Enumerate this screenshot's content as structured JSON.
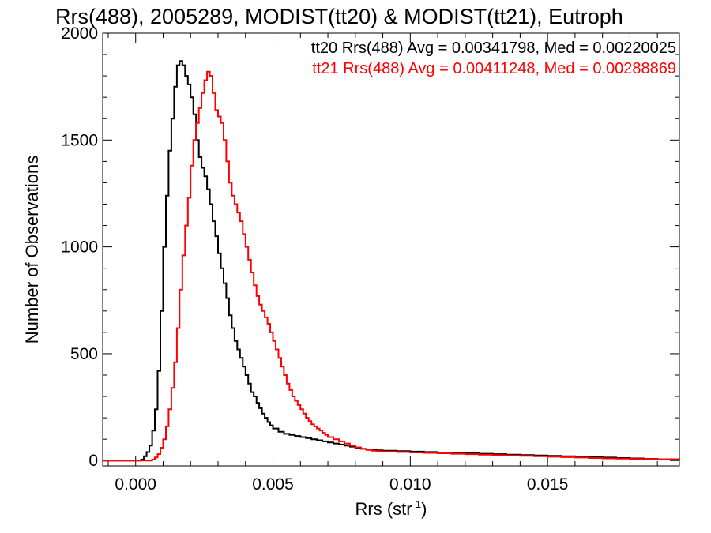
{
  "chart_data": {
    "type": "line",
    "title": "Rrs(488), 2005289, MODIST(tt20) & MODIST(tt21), Eutroph",
    "xlabel_main": "Rrs (str",
    "xlabel_exp": "-1",
    "xlabel_close": ")",
    "ylabel": "Number of Observations",
    "xlim": [
      -0.0012,
      0.0198
    ],
    "ylim": [
      -25,
      2000
    ],
    "x_ticks": [
      0.0,
      0.005,
      0.01,
      0.015
    ],
    "x_tick_labels": [
      "0.000",
      "0.005",
      "0.010",
      "0.015"
    ],
    "y_ticks": [
      0,
      500,
      1000,
      1500,
      2000
    ],
    "y_tick_labels": [
      "0",
      "500",
      "1000",
      "1500",
      "2000"
    ],
    "step_histogram": true,
    "annotations": [
      {
        "text": "tt20 Rrs(488) Avg = 0.00341798, Med = 0.00220025",
        "color": "#000000"
      },
      {
        "text": "tt21 Rrs(488) Avg = 0.00411248, Med = 0.00288869",
        "color": "#ff0000"
      }
    ],
    "series": [
      {
        "color": "#000000",
        "points": [
          [
            -0.0012,
            0
          ],
          [
            0.0,
            0
          ],
          [
            0.0002,
            5
          ],
          [
            0.0003,
            20
          ],
          [
            0.0004,
            40
          ],
          [
            0.0005,
            70
          ],
          [
            0.0006,
            140
          ],
          [
            0.0007,
            240
          ],
          [
            0.0008,
            420
          ],
          [
            0.0009,
            700
          ],
          [
            0.001,
            1000
          ],
          [
            0.0011,
            1240
          ],
          [
            0.0012,
            1450
          ],
          [
            0.0013,
            1600
          ],
          [
            0.0014,
            1750
          ],
          [
            0.0015,
            1850
          ],
          [
            0.0016,
            1870
          ],
          [
            0.0017,
            1850
          ],
          [
            0.0018,
            1800
          ],
          [
            0.0019,
            1760
          ],
          [
            0.002,
            1700
          ],
          [
            0.0021,
            1620
          ],
          [
            0.0022,
            1500
          ],
          [
            0.0023,
            1420
          ],
          [
            0.0024,
            1370
          ],
          [
            0.0025,
            1330
          ],
          [
            0.0026,
            1270
          ],
          [
            0.0027,
            1200
          ],
          [
            0.0028,
            1120
          ],
          [
            0.0029,
            1050
          ],
          [
            0.003,
            970
          ],
          [
            0.0031,
            900
          ],
          [
            0.0032,
            830
          ],
          [
            0.0033,
            760
          ],
          [
            0.0034,
            680
          ],
          [
            0.0035,
            620
          ],
          [
            0.0036,
            560
          ],
          [
            0.0037,
            520
          ],
          [
            0.0038,
            480
          ],
          [
            0.0039,
            440
          ],
          [
            0.004,
            400
          ],
          [
            0.0041,
            360
          ],
          [
            0.0042,
            320
          ],
          [
            0.0043,
            300
          ],
          [
            0.0044,
            270
          ],
          [
            0.0045,
            245
          ],
          [
            0.0046,
            220
          ],
          [
            0.0047,
            200
          ],
          [
            0.0048,
            180
          ],
          [
            0.0049,
            165
          ],
          [
            0.005,
            150
          ],
          [
            0.0052,
            135
          ],
          [
            0.0054,
            125
          ],
          [
            0.0056,
            120
          ],
          [
            0.0058,
            115
          ],
          [
            0.006,
            110
          ],
          [
            0.0062,
            105
          ],
          [
            0.0064,
            100
          ],
          [
            0.0066,
            95
          ],
          [
            0.0068,
            90
          ],
          [
            0.007,
            85
          ],
          [
            0.0072,
            80
          ],
          [
            0.0074,
            75
          ],
          [
            0.0076,
            70
          ],
          [
            0.0078,
            65
          ],
          [
            0.008,
            60
          ],
          [
            0.0082,
            55
          ],
          [
            0.0084,
            52
          ],
          [
            0.0086,
            50
          ],
          [
            0.0088,
            48
          ],
          [
            0.009,
            46
          ],
          [
            0.0095,
            44
          ],
          [
            0.01,
            42
          ],
          [
            0.0105,
            40
          ],
          [
            0.011,
            38
          ],
          [
            0.0115,
            36
          ],
          [
            0.012,
            34
          ],
          [
            0.0125,
            32
          ],
          [
            0.013,
            30
          ],
          [
            0.0135,
            28
          ],
          [
            0.014,
            26
          ],
          [
            0.0145,
            24
          ],
          [
            0.015,
            22
          ],
          [
            0.0155,
            20
          ],
          [
            0.016,
            18
          ],
          [
            0.0165,
            16
          ],
          [
            0.017,
            14
          ],
          [
            0.0175,
            12
          ],
          [
            0.018,
            10
          ],
          [
            0.0185,
            8
          ],
          [
            0.019,
            6
          ],
          [
            0.0198,
            5
          ]
        ]
      },
      {
        "color": "#ff0000",
        "points": [
          [
            -0.0012,
            0
          ],
          [
            0.0005,
            0
          ],
          [
            0.0006,
            5
          ],
          [
            0.0007,
            15
          ],
          [
            0.0008,
            30
          ],
          [
            0.0009,
            60
          ],
          [
            0.001,
            100
          ],
          [
            0.0011,
            160
          ],
          [
            0.0012,
            240
          ],
          [
            0.0013,
            340
          ],
          [
            0.0014,
            460
          ],
          [
            0.0015,
            620
          ],
          [
            0.0016,
            800
          ],
          [
            0.0017,
            960
          ],
          [
            0.0018,
            1100
          ],
          [
            0.0019,
            1230
          ],
          [
            0.002,
            1380
          ],
          [
            0.0021,
            1500
          ],
          [
            0.0022,
            1580
          ],
          [
            0.0023,
            1650
          ],
          [
            0.0024,
            1720
          ],
          [
            0.0025,
            1780
          ],
          [
            0.0026,
            1820
          ],
          [
            0.0027,
            1800
          ],
          [
            0.0028,
            1720
          ],
          [
            0.0029,
            1640
          ],
          [
            0.003,
            1610
          ],
          [
            0.0031,
            1580
          ],
          [
            0.0032,
            1500
          ],
          [
            0.0033,
            1400
          ],
          [
            0.0034,
            1300
          ],
          [
            0.0035,
            1240
          ],
          [
            0.0036,
            1200
          ],
          [
            0.0037,
            1160
          ],
          [
            0.0038,
            1120
          ],
          [
            0.0039,
            1060
          ],
          [
            0.004,
            1000
          ],
          [
            0.0041,
            940
          ],
          [
            0.0042,
            880
          ],
          [
            0.0043,
            820
          ],
          [
            0.0044,
            770
          ],
          [
            0.0045,
            730
          ],
          [
            0.0046,
            700
          ],
          [
            0.0047,
            670
          ],
          [
            0.0048,
            640
          ],
          [
            0.0049,
            600
          ],
          [
            0.005,
            560
          ],
          [
            0.0051,
            520
          ],
          [
            0.0052,
            480
          ],
          [
            0.0053,
            440
          ],
          [
            0.0054,
            400
          ],
          [
            0.0055,
            360
          ],
          [
            0.0056,
            330
          ],
          [
            0.0057,
            300
          ],
          [
            0.0058,
            280
          ],
          [
            0.0059,
            260
          ],
          [
            0.006,
            240
          ],
          [
            0.0061,
            220
          ],
          [
            0.0062,
            200
          ],
          [
            0.0063,
            185
          ],
          [
            0.0064,
            170
          ],
          [
            0.0065,
            160
          ],
          [
            0.0066,
            150
          ],
          [
            0.0067,
            140
          ],
          [
            0.0068,
            130
          ],
          [
            0.0069,
            120
          ],
          [
            0.007,
            110
          ],
          [
            0.0072,
            100
          ],
          [
            0.0074,
            90
          ],
          [
            0.0076,
            80
          ],
          [
            0.0078,
            70
          ],
          [
            0.008,
            62
          ],
          [
            0.0082,
            55
          ],
          [
            0.0084,
            50
          ],
          [
            0.0086,
            46
          ],
          [
            0.0088,
            44
          ],
          [
            0.009,
            42
          ],
          [
            0.0095,
            40
          ],
          [
            0.01,
            38
          ],
          [
            0.0105,
            36
          ],
          [
            0.011,
            34
          ],
          [
            0.0115,
            32
          ],
          [
            0.012,
            30
          ],
          [
            0.0125,
            28
          ],
          [
            0.013,
            26
          ],
          [
            0.0135,
            24
          ],
          [
            0.014,
            22
          ],
          [
            0.0145,
            20
          ],
          [
            0.015,
            18
          ],
          [
            0.0155,
            16
          ],
          [
            0.016,
            14
          ],
          [
            0.0165,
            12
          ],
          [
            0.017,
            10
          ],
          [
            0.0175,
            9
          ],
          [
            0.018,
            8
          ],
          [
            0.0185,
            7
          ],
          [
            0.019,
            6
          ],
          [
            0.0198,
            5
          ]
        ]
      }
    ]
  }
}
